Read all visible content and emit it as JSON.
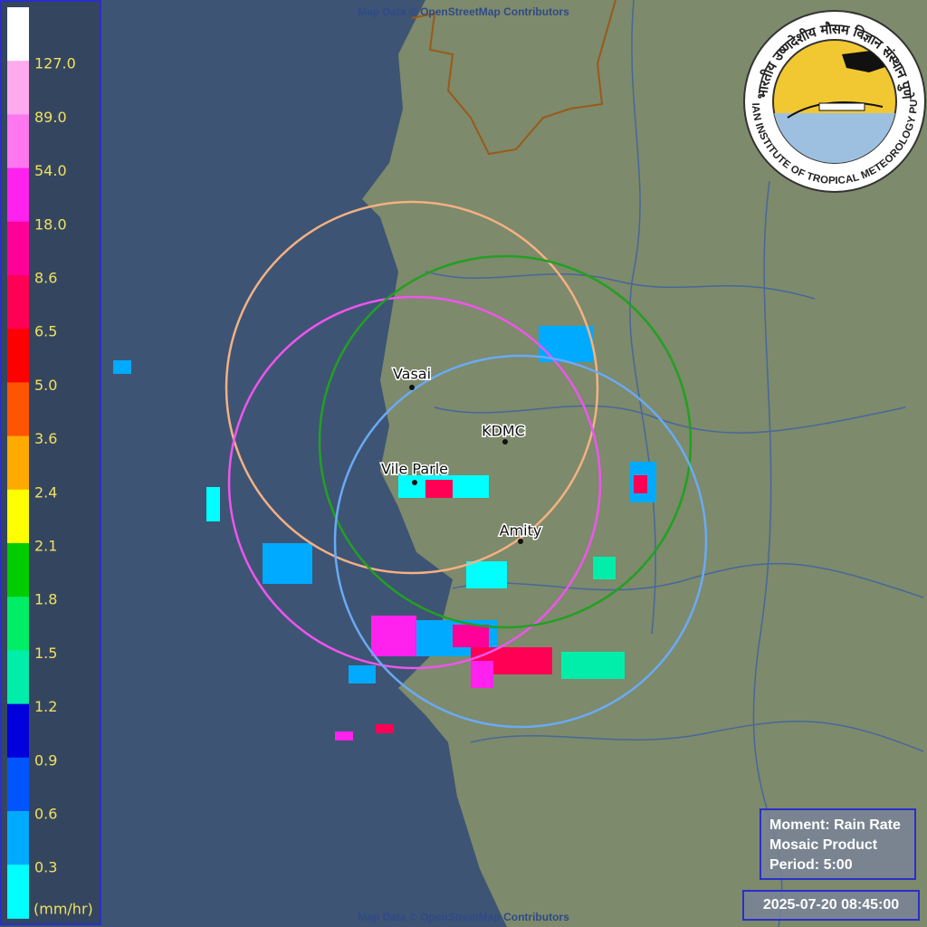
{
  "map": {
    "attribution_top": "Map Data © OpenStreetMap Contributors",
    "attribution_bottom": "Map Data © OpenStreetMap Contributors",
    "stations": [
      "Vasai",
      "KDMC",
      "Vile Parle",
      "Amity"
    ]
  },
  "legend": {
    "colors": [
      "#ffffff",
      "#ffaaee",
      "#ff77ee",
      "#ff22ee",
      "#ff0099",
      "#ff0055",
      "#ff0000",
      "#ff5500",
      "#ffaa00",
      "#ffff00",
      "#00cc00",
      "#00ee66",
      "#00eeaa",
      "#0000dd",
      "#0055ff",
      "#00aaff",
      "#00ffff"
    ],
    "labels": [
      "127.0",
      "89.0",
      "54.0",
      "18.0",
      "8.6",
      "6.5",
      "5.0",
      "3.6",
      "2.4",
      "2.1",
      "1.8",
      "1.5",
      "1.2",
      "0.9",
      "0.6",
      "0.3"
    ],
    "unit": "(mm/hr)"
  },
  "logo": {
    "english": "INDIAN INSTITUTE OF TROPICAL METEOROLOGY PUNE",
    "hindi": "भारतीय उष्णदेशीय मौसम विज्ञान संस्थान पुणे"
  },
  "info": {
    "moment": "Moment: Rain Rate",
    "product": "Mosaic Product",
    "period": "Period: 5:00"
  },
  "timestamp": "2025-07-20 08:45:00"
}
